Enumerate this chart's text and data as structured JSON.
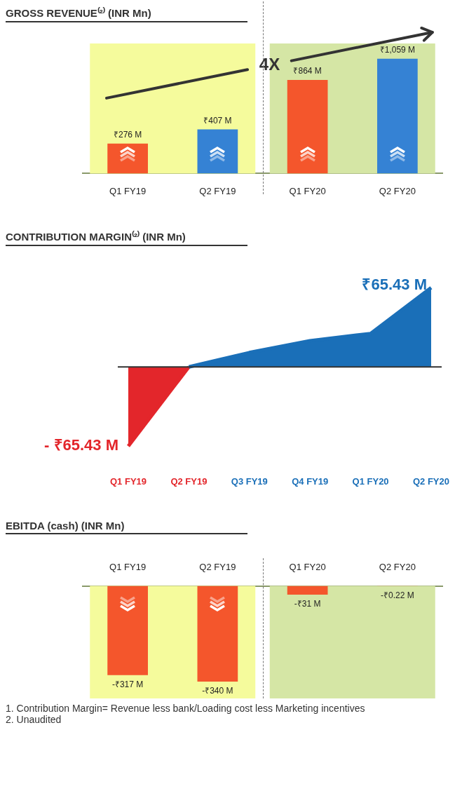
{
  "chart_data": [
    {
      "type": "bar",
      "title": "GROSS REVENUE⁽²⁾ (INR Mn)",
      "categories": [
        "Q1 FY19",
        "Q2 FY19",
        "Q1 FY20",
        "Q2 FY20"
      ],
      "values": [
        276,
        407,
        864,
        1059
      ],
      "colors": [
        "#f4562c",
        "#3582d4",
        "#f4562c",
        "#3582d4"
      ],
      "value_labels": [
        "₹276 M",
        "₹407 M",
        "₹864 M",
        "₹1,059 M"
      ],
      "bands": [
        {
          "axis": "x",
          "from": "Q1 FY19",
          "to": "Q2 FY19",
          "color": "#f5fb9c"
        },
        {
          "axis": "x",
          "from": "Q1 FY20",
          "to": "Q2 FY20",
          "color": "#d5e6a5"
        }
      ],
      "annotations": [
        "4X"
      ]
    },
    {
      "type": "area",
      "title": "CONTRIBUTION MARGIN⁽²⁾ (INR Mn)",
      "categories": [
        "Q1 FY19",
        "Q2 FY19",
        "Q3 FY19",
        "Q4 FY19",
        "Q1 FY20",
        "Q2 FY20"
      ],
      "values": [
        -65.43,
        0,
        11.8,
        21.6,
        27.5,
        65.43
      ],
      "colors": [
        "#e3262b",
        "#e3262b",
        "#1a6fb8",
        "#1a6fb8",
        "#1a6fb8",
        "#1a6fb8"
      ],
      "value_labels": [
        "- ₹65.43 M",
        null,
        null,
        null,
        null,
        "₹65.43 M"
      ]
    },
    {
      "type": "bar",
      "title": "EBITDA (cash) (INR Mn)",
      "categories": [
        "Q1 FY19",
        "Q2 FY19",
        "Q1 FY20",
        "Q2 FY20"
      ],
      "values": [
        -317,
        -340,
        -31,
        -0.22
      ],
      "color": "#f4562c",
      "value_labels": [
        "-₹317 M",
        "-₹340 M",
        "-₹31 M",
        "-₹0.22 M"
      ],
      "bands": [
        {
          "axis": "x",
          "from": "Q1 FY19",
          "to": "Q2 FY19",
          "color": "#f5fb9c"
        },
        {
          "axis": "x",
          "from": "Q1 FY20",
          "to": "Q2 FY20",
          "color": "#d5e6a5"
        }
      ],
      "annotations": [
        "1. Contribution Margin= Revenue less bank/Loading cost less Marketing incentives",
        "2. Unaudited"
      ]
    }
  ]
}
